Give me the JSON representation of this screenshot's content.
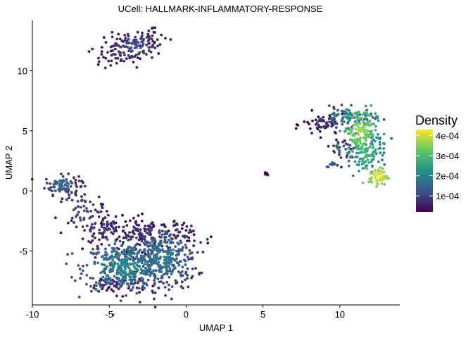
{
  "chart_data": {
    "type": "scatter",
    "title": "UCell: HALLMARK-INFLAMMATORY-RESPONSE",
    "xlabel": "UMAP 1",
    "ylabel": "UMAP 2",
    "xlim": [
      -10,
      13.9
    ],
    "ylim": [
      -9.5,
      14.2
    ],
    "x_ticks": [
      -10,
      -5,
      0,
      5,
      10
    ],
    "y_ticks": [
      -5,
      0,
      5,
      10
    ],
    "x_tick_labels": [
      "-10",
      "-5",
      "0",
      "5",
      "10"
    ],
    "y_tick_labels": [
      "-5",
      "0",
      "5",
      "10"
    ],
    "grid": false,
    "colormap": "viridis",
    "legend": {
      "title": "Density",
      "position": "right",
      "range": [
        2e-05,
        0.00043
      ],
      "breaks": [
        0.0001,
        0.0002,
        0.0003,
        0.0004
      ],
      "labels": [
        "1e-04",
        "2e-04",
        "3e-04",
        "4e-04"
      ]
    },
    "clusters": [
      {
        "cx": -3.5,
        "cy": 12.0,
        "sx": 1.2,
        "sy": 0.65,
        "angle": 22,
        "n": 160,
        "density": [
          4e-05,
          0.00012
        ]
      },
      {
        "cx": -8.1,
        "cy": 0.5,
        "sx": 0.55,
        "sy": 0.4,
        "angle": 0,
        "n": 80,
        "density": [
          8e-05,
          0.00017
        ]
      },
      {
        "cx": -6.5,
        "cy": -1.8,
        "sx": 0.7,
        "sy": 1.1,
        "angle": 20,
        "n": 80,
        "density": [
          5e-05,
          0.00012
        ]
      },
      {
        "cx": -5.2,
        "cy": -3.2,
        "sx": 0.5,
        "sy": 0.6,
        "angle": 0,
        "n": 40,
        "density": [
          4e-05,
          0.0001
        ]
      },
      {
        "cx": -4.0,
        "cy": -6.3,
        "sx": 1.3,
        "sy": 1.0,
        "angle": 0,
        "n": 380,
        "density": [
          0.00012,
          0.00022
        ]
      },
      {
        "cx": -1.5,
        "cy": -5.6,
        "sx": 1.1,
        "sy": 1.3,
        "angle": 0,
        "n": 320,
        "density": [
          8e-05,
          0.0002
        ]
      },
      {
        "cx": -2.5,
        "cy": -3.6,
        "sx": 1.5,
        "sy": 0.7,
        "angle": 0,
        "n": 140,
        "density": [
          3e-05,
          8e-05
        ]
      },
      {
        "cx": -4.5,
        "cy": -7.8,
        "sx": 1.0,
        "sy": 0.4,
        "angle": 0,
        "n": 60,
        "density": [
          3e-05,
          8e-05
        ]
      },
      {
        "cx": 9.0,
        "cy": 5.5,
        "sx": 0.7,
        "sy": 0.5,
        "angle": 0,
        "n": 60,
        "density": [
          2e-05,
          8e-05
        ]
      },
      {
        "cx": 10.5,
        "cy": 6.1,
        "sx": 0.8,
        "sy": 0.4,
        "angle": 0,
        "n": 70,
        "density": [
          0.00012,
          0.00022
        ]
      },
      {
        "cx": 11.3,
        "cy": 5.0,
        "sx": 0.55,
        "sy": 1.0,
        "angle": 0,
        "n": 140,
        "density": [
          0.00025,
          0.00038
        ]
      },
      {
        "cx": 11.8,
        "cy": 3.0,
        "sx": 0.5,
        "sy": 0.9,
        "angle": -20,
        "n": 90,
        "density": [
          0.00018,
          0.0003
        ]
      },
      {
        "cx": 12.5,
        "cy": 1.2,
        "sx": 0.3,
        "sy": 0.35,
        "angle": 0,
        "n": 60,
        "density": [
          0.00034,
          0.00043
        ]
      },
      {
        "cx": 10.3,
        "cy": 3.4,
        "sx": 0.4,
        "sy": 0.6,
        "angle": 0,
        "n": 30,
        "density": [
          6e-05,
          0.00014
        ]
      },
      {
        "cx": 9.4,
        "cy": 2.2,
        "sx": 0.3,
        "sy": 0.15,
        "angle": 30,
        "n": 10,
        "density": [
          0.0001,
          0.00014
        ]
      },
      {
        "cx": 5.2,
        "cy": 1.45,
        "sx": 0.08,
        "sy": 0.07,
        "angle": 0,
        "n": 6,
        "density": [
          2e-05,
          3e-05
        ]
      }
    ]
  }
}
